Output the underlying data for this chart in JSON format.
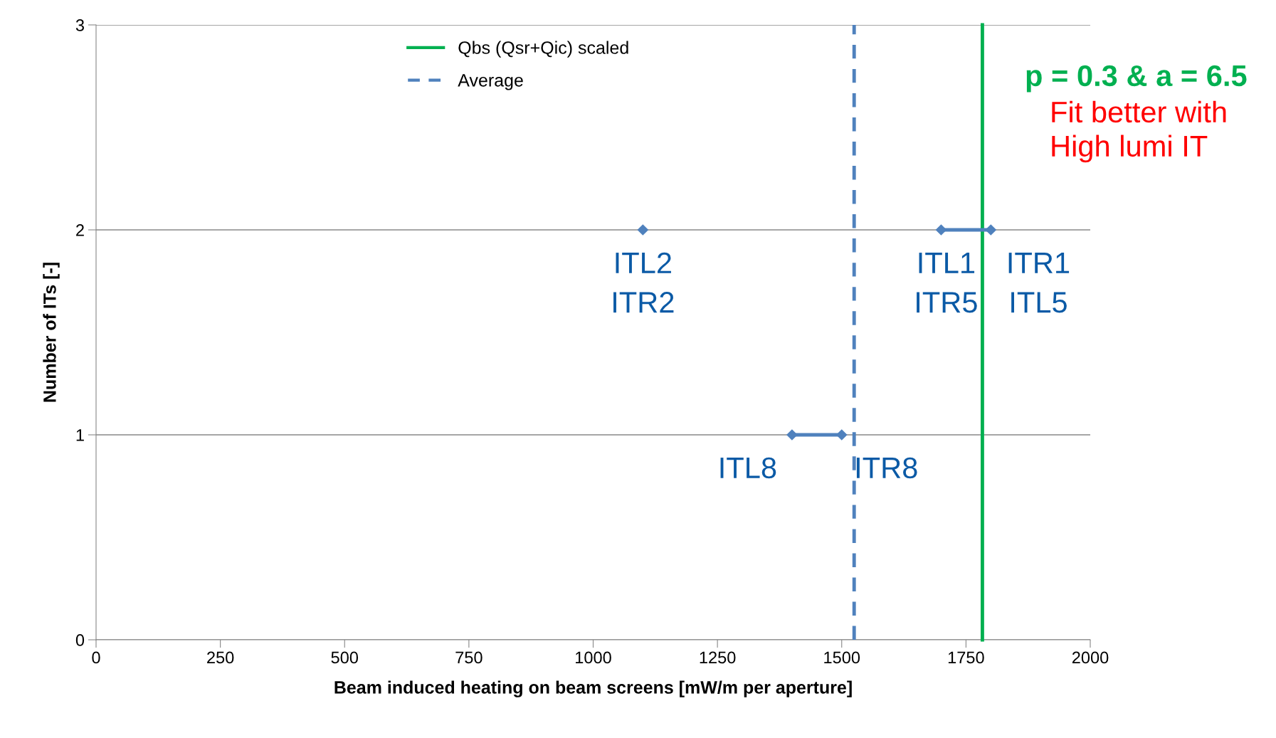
{
  "chart_data": {
    "type": "line",
    "xlabel": "Beam induced heating on beam screens [mW/m per aperture]",
    "ylabel": "Number of ITs [-]",
    "xlim": [
      0,
      2000
    ],
    "xticks": [
      0,
      250,
      500,
      750,
      1000,
      1250,
      1500,
      1750,
      2000
    ],
    "ylim": [
      0,
      3
    ],
    "yticks": [
      0,
      1,
      2,
      3
    ],
    "grid": "y",
    "legend": "top",
    "marker": "diamond",
    "series": [
      {
        "name": "Qbs (Qsr+Qic) scaled",
        "color": "#00b050",
        "x": [
          1783,
          1783
        ],
        "values": [
          0,
          3
        ],
        "marker": "none",
        "line_style": "solid"
      },
      {
        "name": "Average",
        "color": "#4f81bd",
        "x": [
          1525,
          1525
        ],
        "values": [
          0,
          3
        ],
        "marker": "none",
        "line_style": "dashed"
      },
      {
        "color": "#4f81bd",
        "x": [
          1100
        ],
        "values": [
          2
        ],
        "line_style": "solid"
      },
      {
        "color": "#4f81bd",
        "x": [
          1400,
          1500
        ],
        "values": [
          1,
          1
        ],
        "line_style": "solid"
      },
      {
        "color": "#4f81bd",
        "x": [
          1700,
          1800
        ],
        "values": [
          2,
          2
        ],
        "line_style": "solid"
      }
    ],
    "annotations": [
      {
        "text": "ITL2\nITR2",
        "x": 1100,
        "y": 2
      },
      {
        "text": "ITL8",
        "x": 1400,
        "y": 1
      },
      {
        "text": "ITR8",
        "x": 1500,
        "y": 1
      },
      {
        "text": "ITL1\nITR5",
        "x": 1700,
        "y": 2
      },
      {
        "text": "ITR1\nITL5",
        "x": 1800,
        "y": 2
      },
      "p = 0.3 & a = 6.5",
      "Fit better with\nHigh lumi IT"
    ]
  }
}
